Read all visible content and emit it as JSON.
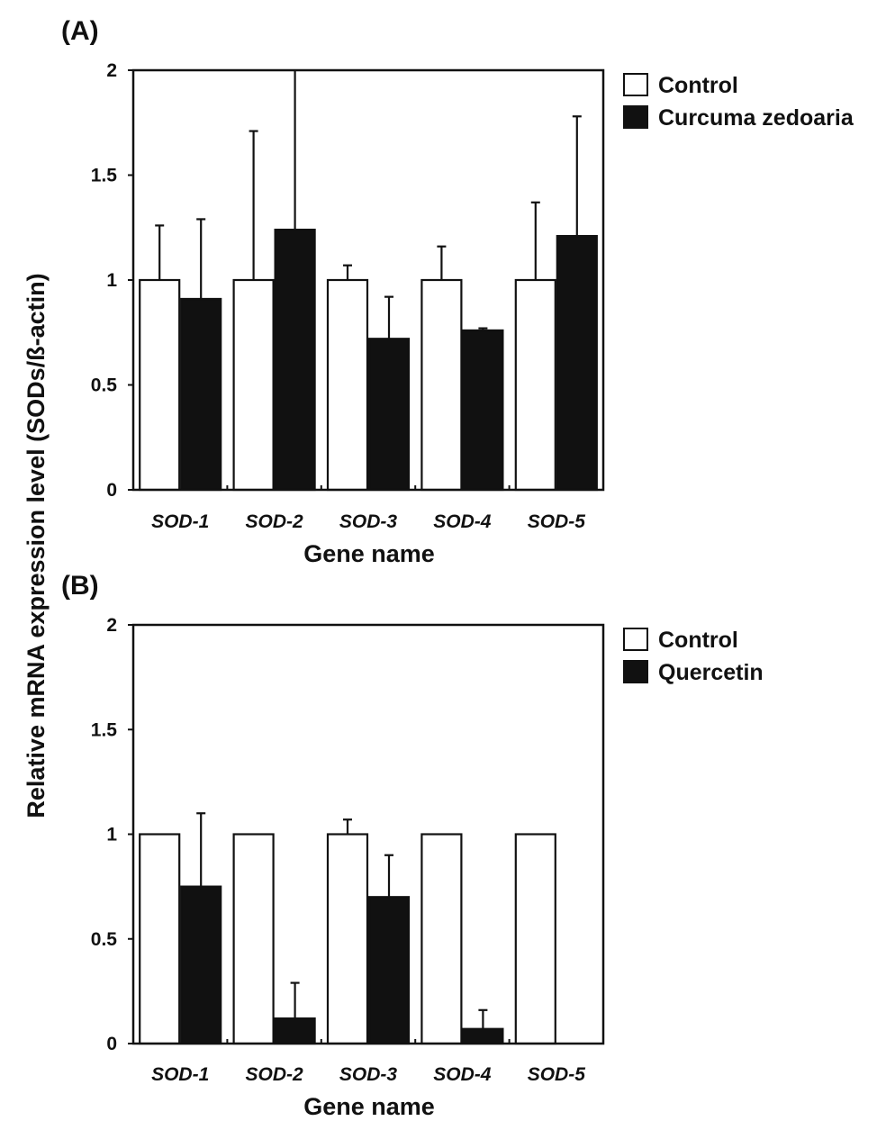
{
  "ylabel": "Relative mRNA expression level (SODs/ß-actin)",
  "colors": {
    "control": "#ffffff",
    "treatment": "#111111",
    "stroke": "#111111"
  },
  "chart_data": [
    {
      "type": "bar",
      "panel_label": "(A)",
      "xlabel": "Gene name",
      "categories": [
        "SOD-1",
        "SOD-2",
        "SOD-3",
        "SOD-4",
        "SOD-5"
      ],
      "ylim": [
        0,
        2
      ],
      "yticks": [
        "0",
        "0.5",
        "1",
        "1.5",
        "2"
      ],
      "ytick_values": [
        0,
        0.5,
        1,
        1.5,
        2
      ],
      "legend_position": "right",
      "series": [
        {
          "name": "Control",
          "color": "#ffffff",
          "values": [
            1,
            1,
            1,
            1,
            1
          ],
          "errors": [
            0.26,
            0.71,
            0.07,
            0.16,
            0.37
          ]
        },
        {
          "name": "Curcuma zedoaria",
          "color": "#111111",
          "values": [
            0.91,
            1.24,
            0.72,
            0.76,
            1.21
          ],
          "errors": [
            0.38,
            0.77,
            0.2,
            0.01,
            0.57
          ]
        }
      ]
    },
    {
      "type": "bar",
      "panel_label": "(B)",
      "xlabel": "Gene name",
      "categories": [
        "SOD-1",
        "SOD-2",
        "SOD-3",
        "SOD-4",
        "SOD-5"
      ],
      "ylim": [
        0,
        2
      ],
      "yticks": [
        "0",
        "0.5",
        "1",
        "1.5",
        "2"
      ],
      "ytick_values": [
        0,
        0.5,
        1,
        1.5,
        2
      ],
      "legend_position": "right",
      "series": [
        {
          "name": "Control",
          "color": "#ffffff",
          "values": [
            1,
            1,
            1,
            1,
            1
          ],
          "errors": [
            0,
            0,
            0.07,
            0,
            0
          ]
        },
        {
          "name": "Quercetin",
          "color": "#111111",
          "values": [
            0.75,
            0.12,
            0.7,
            0.07,
            0
          ],
          "errors": [
            0.35,
            0.17,
            0.2,
            0.09,
            0
          ]
        }
      ]
    }
  ]
}
